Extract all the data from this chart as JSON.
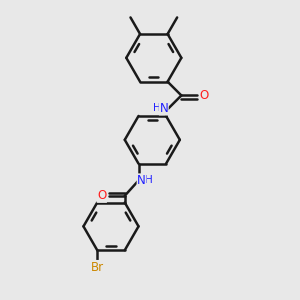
{
  "background_color": "#e8e8e8",
  "bond_color": "#1a1a1a",
  "bond_width": 1.8,
  "dbo": 0.055,
  "N_color": "#2020ff",
  "O_color": "#ff2020",
  "Br_color": "#cc8800",
  "C_color": "#1a1a1a",
  "font_size_atom": 8.5,
  "font_size_methyl": 7.5,
  "figsize": [
    3.0,
    3.0
  ],
  "dpi": 100,
  "r_ring": 0.36,
  "xlim": [
    -1.0,
    1.0
  ],
  "ylim": [
    -0.55,
    3.3
  ]
}
